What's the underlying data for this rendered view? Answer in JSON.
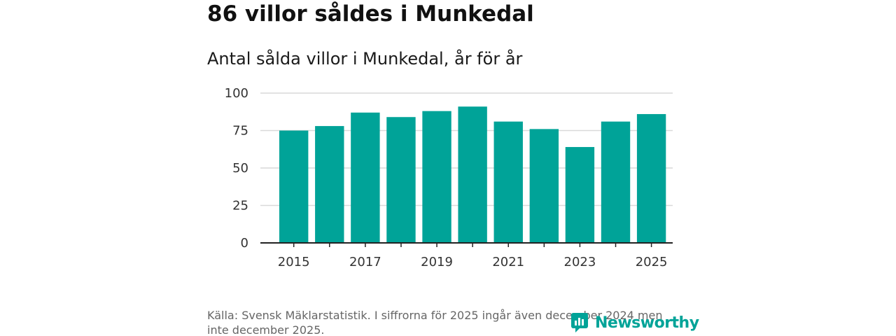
{
  "header": {
    "title": "86 villor såldes i Munkedal",
    "subtitle": "Antal sålda villor i Munkedal, år för år"
  },
  "footer": {
    "source": "Källa: Svensk Mäklarstatistik. I siffrorna för 2025 ingår även december 2024 men inte december 2025.",
    "brand": "Newsworthy",
    "brand_icon": "newsworthy-logo-icon"
  },
  "colors": {
    "bar": "#00a398",
    "grid": "#d9d9d9",
    "axis": "#222222",
    "brand": "#00a398"
  },
  "chart_data": {
    "type": "bar",
    "title": "Antal sålda villor i Munkedal, år för år",
    "xlabel": "",
    "ylabel": "",
    "categories": [
      "2015",
      "2016",
      "2017",
      "2018",
      "2019",
      "2020",
      "2021",
      "2022",
      "2023",
      "2024",
      "2025"
    ],
    "values": [
      75,
      78,
      87,
      84,
      88,
      91,
      81,
      76,
      64,
      81,
      86
    ],
    "x_tick_labels": [
      "2015",
      "2017",
      "2019",
      "2021",
      "2023",
      "2025"
    ],
    "y_ticks": [
      0,
      25,
      50,
      75,
      100
    ],
    "ylim": [
      0,
      100
    ],
    "grid": true,
    "legend": "none"
  }
}
